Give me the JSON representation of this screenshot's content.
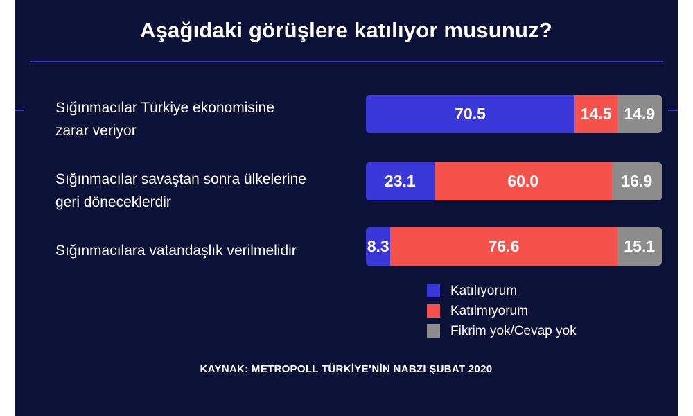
{
  "title": "Aşağıdaki görüşlere katılıyor musunuz?",
  "source": "KAYNAK: METROPOLL TÜRKİYE’NİN NABZI ŞUBAT 2020",
  "colors": {
    "background": "#0c1137",
    "agree": "#3b38d9",
    "disagree": "#f5524b",
    "no_opinion": "#8c8c8c",
    "rule": "#3b38d9"
  },
  "chart_data": {
    "type": "bar",
    "orientation": "horizontal",
    "stacked": true,
    "title": "Aşağıdaki görüşlere katılıyor musunuz?",
    "categories": [
      [
        "Sığınmacılar Türkiye ekonomisine",
        "zarar veriyor"
      ],
      [
        "Sığınmacılar savaştan sonra ülkelerine",
        "geri döneceklerdir"
      ],
      [
        "Sığınmacılara vatandaşlık verilmelidir"
      ]
    ],
    "series": [
      {
        "name": "Katılıyorum",
        "color": "#3b38d9",
        "values": [
          70.5,
          23.1,
          8.3
        ]
      },
      {
        "name": "Katılmıyorum",
        "color": "#f5524b",
        "values": [
          14.5,
          60.0,
          76.6
        ]
      },
      {
        "name": "Fikrim yok/Cevap yok",
        "color": "#8c8c8c",
        "values": [
          14.9,
          16.9,
          15.1
        ]
      }
    ],
    "value_labels": [
      [
        "70.5",
        "14.5",
        "14.9"
      ],
      [
        "23.1",
        "60.0",
        "16.9"
      ],
      [
        "8.3",
        "76.6",
        "15.1"
      ]
    ],
    "xlim": [
      0,
      100
    ],
    "legend_position": "bottom-right",
    "grid": false
  }
}
